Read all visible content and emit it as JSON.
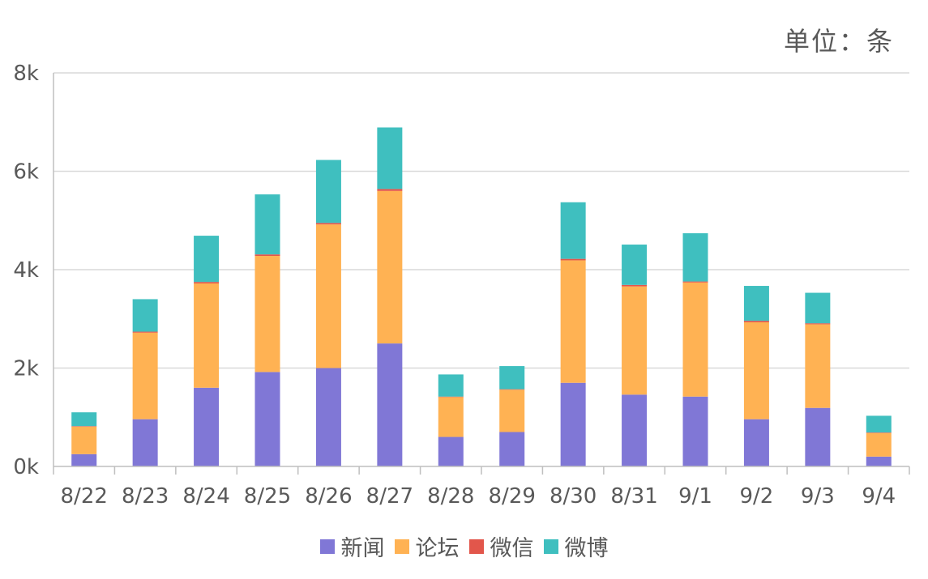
{
  "unit_label": "单位：条",
  "chart_data": {
    "type": "bar",
    "stacked": true,
    "categories": [
      "8/22",
      "8/23",
      "8/24",
      "8/25",
      "8/26",
      "8/27",
      "8/28",
      "8/29",
      "8/30",
      "8/31",
      "9/1",
      "9/2",
      "9/3",
      "9/4"
    ],
    "series": [
      {
        "name": "新闻",
        "color": "#8077D6",
        "values": [
          250,
          960,
          1600,
          1920,
          2000,
          2500,
          600,
          700,
          1700,
          1460,
          1420,
          960,
          1190,
          200
        ]
      },
      {
        "name": "论坛",
        "color": "#FFB253",
        "values": [
          560,
          1760,
          2120,
          2360,
          2920,
          3100,
          810,
          860,
          2490,
          2200,
          2320,
          1970,
          1700,
          480
        ]
      },
      {
        "name": "微信",
        "color": "#E2564B",
        "values": [
          10,
          20,
          30,
          30,
          30,
          40,
          10,
          10,
          30,
          30,
          20,
          30,
          20,
          10
        ]
      },
      {
        "name": "微博",
        "color": "#3FBFBF",
        "values": [
          280,
          660,
          940,
          1220,
          1280,
          1250,
          450,
          470,
          1150,
          820,
          980,
          710,
          620,
          340
        ]
      }
    ],
    "yticks": [
      "0k",
      "2k",
      "4k",
      "6k",
      "8k"
    ],
    "ylim": [
      0,
      8000
    ],
    "grid": true,
    "legend": "bottom"
  }
}
